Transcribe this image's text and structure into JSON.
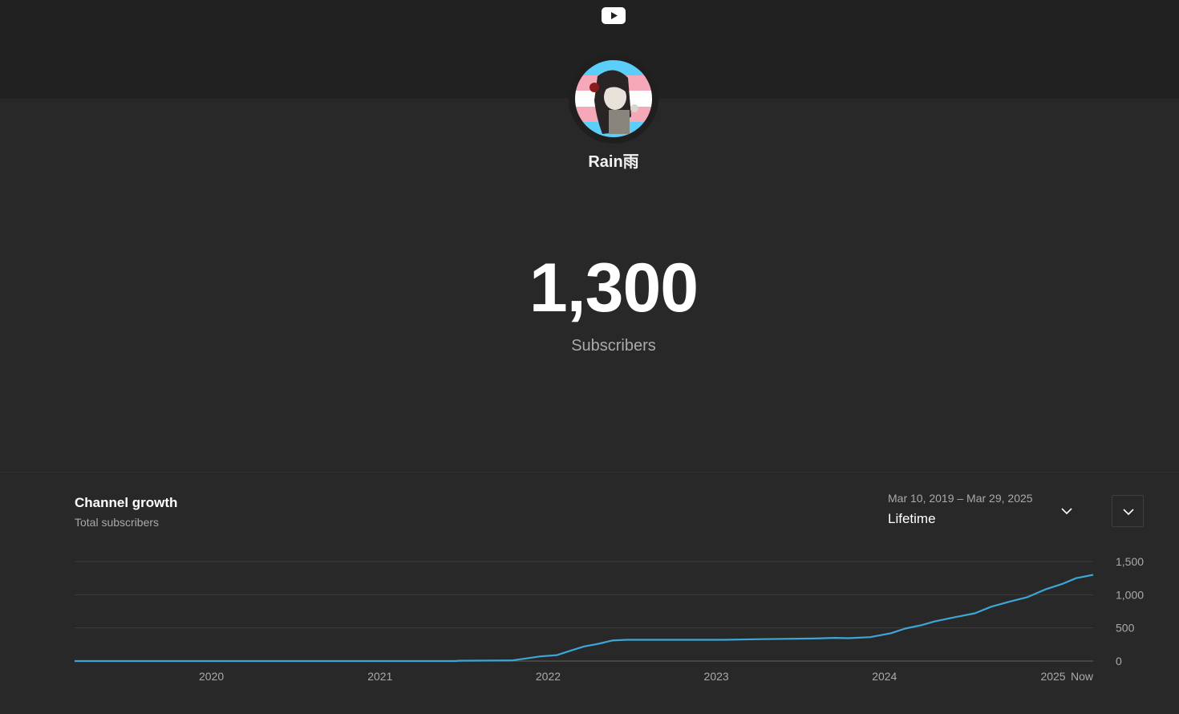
{
  "header": {
    "logo_icon": "youtube-play-icon"
  },
  "channel": {
    "name": "Rain雨",
    "avatar_icon": "channel-avatar"
  },
  "stats": {
    "subscriber_count": "1,300",
    "subscriber_label": "Subscribers"
  },
  "growth": {
    "title": "Channel growth",
    "subtitle": "Total subscribers",
    "date_range": "Mar 10, 2019 – Mar 29, 2025",
    "range_label": "Lifetime",
    "range_icon": "chevron-down-icon",
    "menu_icon": "chevron-down-icon"
  },
  "colors": {
    "line": "#3ea6d6",
    "accent": "#ff0000"
  },
  "chart_data": {
    "type": "line",
    "title": "",
    "xlabel": "",
    "ylabel": "",
    "x_ticks": [
      "2020",
      "2021",
      "2022",
      "2023",
      "2024",
      "2025",
      "Now"
    ],
    "y_ticks": [
      "1,500",
      "1,000",
      "500",
      "0"
    ],
    "ylim": [
      0,
      1500
    ],
    "xlim": [
      "2019-03-10",
      "2025-03-29"
    ],
    "grid": true,
    "series": [
      {
        "values": [
          {
            "x": "2019-03-10",
            "y": 0
          },
          {
            "x": "2021-06-15",
            "y": 0
          },
          {
            "x": "2021-06-20",
            "y": 5
          },
          {
            "x": "2021-10-15",
            "y": 10
          },
          {
            "x": "2021-11-15",
            "y": 40
          },
          {
            "x": "2021-12-15",
            "y": 70
          },
          {
            "x": "2022-01-20",
            "y": 90
          },
          {
            "x": "2022-02-20",
            "y": 160
          },
          {
            "x": "2022-03-20",
            "y": 220
          },
          {
            "x": "2022-04-20",
            "y": 260
          },
          {
            "x": "2022-05-20",
            "y": 310
          },
          {
            "x": "2022-06-20",
            "y": 320
          },
          {
            "x": "2022-09-20",
            "y": 320
          },
          {
            "x": "2023-01-15",
            "y": 320
          },
          {
            "x": "2023-04-10",
            "y": 330
          },
          {
            "x": "2023-08-01",
            "y": 340
          },
          {
            "x": "2023-09-15",
            "y": 350
          },
          {
            "x": "2023-10-15",
            "y": 345
          },
          {
            "x": "2023-12-01",
            "y": 360
          },
          {
            "x": "2024-01-15",
            "y": 420
          },
          {
            "x": "2024-02-15",
            "y": 490
          },
          {
            "x": "2024-03-20",
            "y": 540
          },
          {
            "x": "2024-04-20",
            "y": 600
          },
          {
            "x": "2024-06-01",
            "y": 660
          },
          {
            "x": "2024-07-15",
            "y": 720
          },
          {
            "x": "2024-08-20",
            "y": 820
          },
          {
            "x": "2024-10-01",
            "y": 900
          },
          {
            "x": "2024-11-05",
            "y": 960
          },
          {
            "x": "2024-12-15",
            "y": 1080
          },
          {
            "x": "2025-01-20",
            "y": 1160
          },
          {
            "x": "2025-02-20",
            "y": 1250
          },
          {
            "x": "2025-03-29",
            "y": 1300
          }
        ]
      }
    ]
  }
}
